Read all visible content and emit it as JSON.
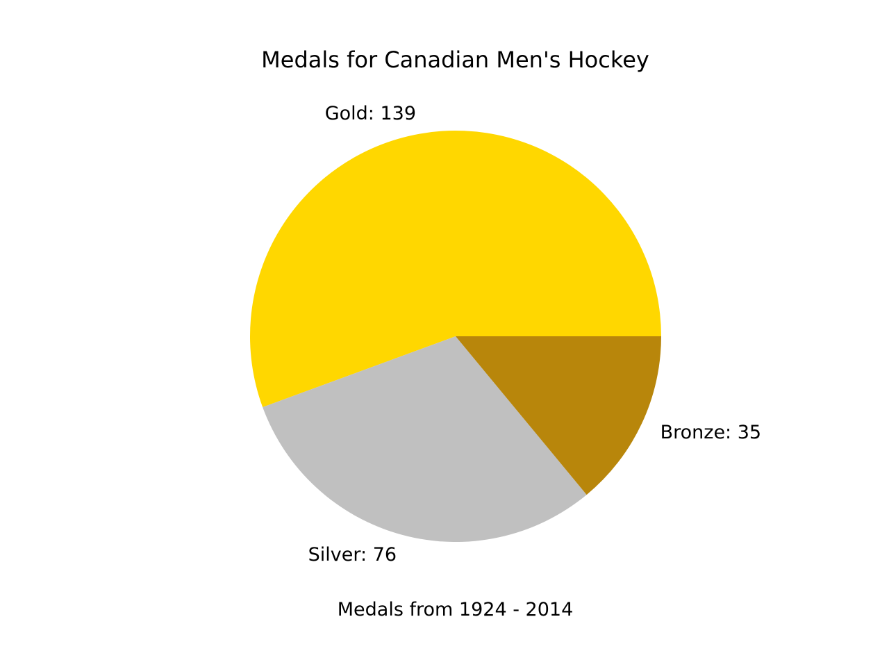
{
  "chart_data": {
    "type": "pie",
    "title": "Medals for Canadian Men's Hockey",
    "xlabel": "Medals from 1924 - 2014",
    "slices": [
      {
        "label": "Gold",
        "value": 139,
        "color": "#FFD700"
      },
      {
        "label": "Silver",
        "value": 76,
        "color": "#C0C0C0"
      },
      {
        "label": "Bronze",
        "value": 35,
        "color": "#B8860B"
      }
    ],
    "start_angle_deg": 0,
    "direction": "counterclockwise",
    "legend": "none",
    "grid": false
  }
}
